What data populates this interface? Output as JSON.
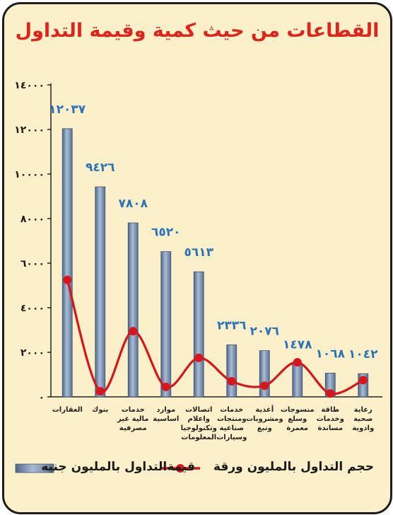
{
  "chart_data": {
    "type": "bar",
    "title": "القطاعات من حيث كمية وقيمة التداول",
    "categories": [
      "العقارات",
      "بنوك",
      "خدمات مالية غير مصرفية",
      "موارد اساسية",
      "اتصالات واعلام وتكنولوجيا المعلومات",
      "خدمات ومنتجات صناعية وسيارات",
      "أغذية ومشروبات وتبغ",
      "منسوجات وسلع معمرة",
      "طاقة وخدمات مساندة",
      "رعاية صحية وادوية"
    ],
    "series": [
      {
        "name": "قيمةالتداول بالمليون جنيه",
        "type": "bar",
        "values": [
          12037,
          9426,
          7808,
          6520,
          5613,
          2336,
          2076,
          1478,
          1068,
          1042
        ],
        "labels": [
          "١٢٠٣٧",
          "٩٤٢٦",
          "٧٨٠٨",
          "٦٥٢٠",
          "٥٦١٣",
          "٢٣٣٦",
          "٢٠٧٦",
          "١٤٧٨",
          "١٠٦٨",
          "١٠٤٢"
        ],
        "color": "#7f97b8"
      },
      {
        "name": "حجم التداول بالمليون ورقة",
        "type": "line",
        "values": [
          5250,
          250,
          2950,
          450,
          1750,
          700,
          500,
          1550,
          150,
          750
        ],
        "color": "#d8141c"
      }
    ],
    "ylim": [
      0,
      14000
    ],
    "yticks": [
      0,
      2000,
      4000,
      6000,
      8000,
      10000,
      12000,
      14000
    ],
    "ytick_labels": [
      "٠",
      "٢٠٠٠",
      "٤٠٠٠",
      "٦٠٠٠",
      "٨٠٠٠",
      "١٠٠٠٠",
      "١٢٠٠٠",
      "١٤٠٠٠"
    ],
    "legend_position": "bottom",
    "grid": false
  }
}
